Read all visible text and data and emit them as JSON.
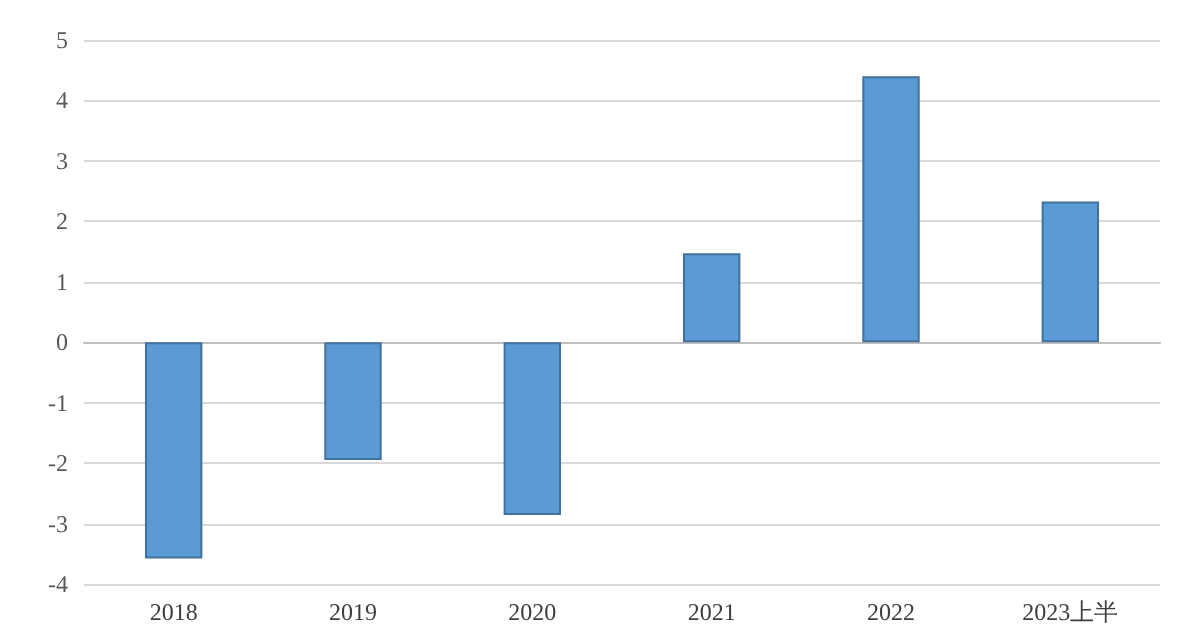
{
  "chart_data": {
    "type": "bar",
    "categories": [
      "2018",
      "2019",
      "2020",
      "2021",
      "2022",
      "2023上半"
    ],
    "values": [
      -3.58,
      -1.95,
      -2.86,
      1.47,
      4.4,
      2.33
    ],
    "color": "#5b9bd5",
    "ylim": [
      -4,
      5
    ],
    "yticks": [
      -4,
      -3,
      -2,
      -1,
      0,
      1,
      2,
      3,
      4,
      5
    ],
    "grid": "y"
  }
}
